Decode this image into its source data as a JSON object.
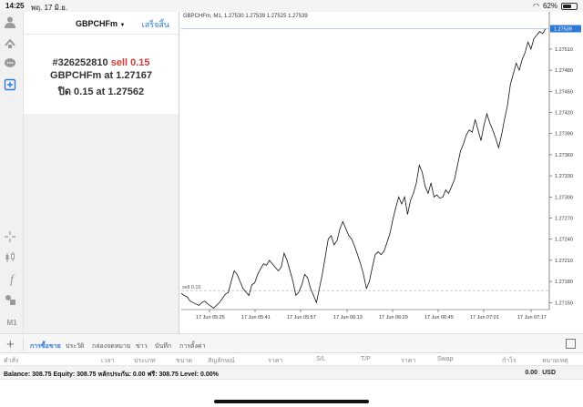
{
  "statusbar": {
    "time": "14:25",
    "date": "พฤ. 17 มิ.ย.",
    "battery": "62%",
    "battery_level": 0.62
  },
  "order": {
    "symbol": "GBPCHFm",
    "done_label": "เสร็จสิ้น",
    "ticket": "#326252810",
    "type": "sell 0.15",
    "open_text": "GBPCHFm at ",
    "open_price": "1.27167",
    "close_text": "ปิด 0.15 at ",
    "close_price": "1.27562"
  },
  "chart": {
    "title": "GBPCHFm, M1, 1.27530 1.27539 1.27525 1.27539",
    "current_price_label": "1.27539",
    "sell_label": "sell 0.15",
    "sell_price": 1.27167
  },
  "chart_data": {
    "type": "line",
    "ylim": [
      1.2714,
      1.2755
    ],
    "y_ticks": [
      "1.27510",
      "1.27480",
      "1.27450",
      "1.27420",
      "1.27390",
      "1.27360",
      "1.27330",
      "1.27300",
      "1.27270",
      "1.27240",
      "1.27210",
      "1.27180",
      "1.27150"
    ],
    "x_ticks": [
      "17 Jun 05:25",
      "17 Jun 05:41",
      "17 Jun 05:57",
      "17 Jun 06:13",
      "17 Jun 06:29",
      "17 Jun 06:45",
      "17 Jun 07:01",
      "17 Jun 07:17"
    ],
    "grid": false,
    "values": [
      1.27163,
      1.2716,
      1.27158,
      1.27152,
      1.2715,
      1.27148,
      1.27146,
      1.2715,
      1.27152,
      1.27148,
      1.27145,
      1.27142,
      1.27146,
      1.2715,
      1.27156,
      1.27162,
      1.27164,
      1.2718,
      1.27195,
      1.2719,
      1.2718,
      1.2717,
      1.27165,
      1.2716,
      1.27175,
      1.27178,
      1.2719,
      1.27198,
      1.27205,
      1.27203,
      1.2721,
      1.27205,
      1.272,
      1.27195,
      1.272,
      1.2722,
      1.2721,
      1.27195,
      1.2718,
      1.2716,
      1.27165,
      1.27175,
      1.2719,
      1.27185,
      1.2717,
      1.2716,
      1.2715,
      1.2717,
      1.2719,
      1.27215,
      1.2724,
      1.27245,
      1.27232,
      1.27238,
      1.27255,
      1.27265,
      1.27255,
      1.27245,
      1.2724,
      1.2723,
      1.27218,
      1.27205,
      1.2719,
      1.2717,
      1.2718,
      1.272,
      1.27218,
      1.27222,
      1.27218,
      1.27223,
      1.27235,
      1.27248,
      1.27268,
      1.27285,
      1.273,
      1.2729,
      1.273,
      1.27275,
      1.27295,
      1.27305,
      1.2732,
      1.27345,
      1.27335,
      1.27315,
      1.27305,
      1.2732,
      1.273,
      1.27303,
      1.27298,
      1.273,
      1.2731,
      1.27305,
      1.27315,
      1.27325,
      1.27345,
      1.27365,
      1.27375,
      1.27388,
      1.27395,
      1.27392,
      1.2741,
      1.27395,
      1.2738,
      1.27402,
      1.27418,
      1.27405,
      1.27395,
      1.27383,
      1.2737,
      1.27388,
      1.2741,
      1.2743,
      1.2746,
      1.27475,
      1.2749,
      1.2748,
      1.27495,
      1.27505,
      1.2752,
      1.2751,
      1.27525,
      1.2753,
      1.27535,
      1.27532,
      1.27539
    ]
  },
  "tabs": [
    "การซื้อขาย",
    "ประวัติ",
    "กล่องจดหมาย",
    "ข่าว",
    "บันทึก",
    "การตั้งค่า"
  ],
  "columns": [
    "คำสั่ง",
    "เวลา",
    "ประเภท",
    "ขนาด",
    "สัญลักษณ์",
    "ราคา",
    "S/L",
    "T/P",
    "ราคา",
    "Swap",
    "กำไร",
    "หมายเหตุ"
  ],
  "balance": {
    "text": "Balance: 308.75  Equity: 308.75  หลักประกัน: 0.00  ฟรี: 308.75  Level: 0.00%",
    "amount": "0.00",
    "currency": "USD"
  },
  "colors": {
    "accent": "#2f79d6",
    "sell": "#d23a3a",
    "line": "#111111"
  },
  "tools": [
    "person-icon",
    "trade-icon",
    "chat-icon",
    "new-order-icon",
    "crosshair-icon",
    "candles-icon",
    "function-icon",
    "objects-icon",
    "timeframe-icon"
  ],
  "timeframe_label": "M1"
}
